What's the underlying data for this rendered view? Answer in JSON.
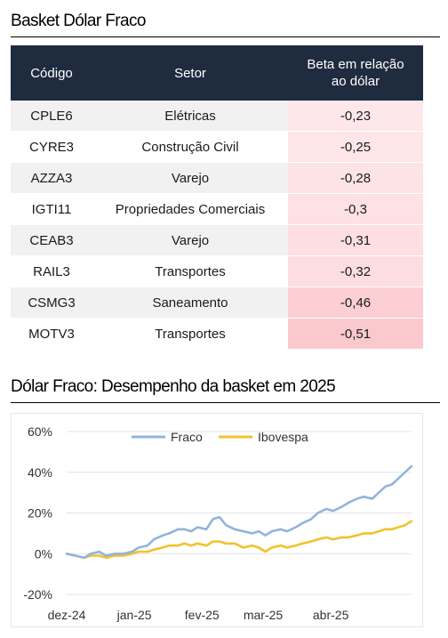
{
  "section1": {
    "title": "Basket Dólar Fraco",
    "table": {
      "headers": [
        "Código",
        "Setor",
        "Beta em relação",
        "ao dólar"
      ],
      "rows": [
        {
          "code": "CPLE6",
          "sector": "Elétricas",
          "beta": "-0,23"
        },
        {
          "code": "CYRE3",
          "sector": "Construção Civil",
          "beta": "-0,25"
        },
        {
          "code": "AZZA3",
          "sector": "Varejo",
          "beta": "-0,28"
        },
        {
          "code": "IGTI11",
          "sector": "Propriedades Comerciais",
          "beta": "-0,3"
        },
        {
          "code": "CEAB3",
          "sector": "Varejo",
          "beta": "-0,31"
        },
        {
          "code": "RAIL3",
          "sector": "Transportes",
          "beta": "-0,32"
        },
        {
          "code": "CSMG3",
          "sector": "Saneamento",
          "beta": "-0,46"
        },
        {
          "code": "MOTV3",
          "sector": "Transportes",
          "beta": "-0,51"
        }
      ],
      "beta_heat_colors": [
        "#fde7ea",
        "#fde5e8",
        "#fde3e6",
        "#fde1e4",
        "#fddfe2",
        "#fcdde0",
        "#fbcfd3",
        "#fac9ce"
      ]
    }
  },
  "section2": {
    "title": "Dólar Fraco: Desempenho da basket em 2025"
  },
  "chart_data": {
    "type": "line",
    "title": "",
    "xlabel": "",
    "ylabel": "",
    "x_range": [
      "2024-12-01",
      "2025-05-08"
    ],
    "ylim": [
      -20,
      60
    ],
    "y_ticks": [
      -20,
      0,
      20,
      40,
      60
    ],
    "y_tick_labels": [
      "-20%",
      "0%",
      "20%",
      "40%",
      "60%"
    ],
    "x_tick_labels": [
      {
        "date": "2024-12-01",
        "label": "dez-24"
      },
      {
        "date": "2025-01-01",
        "label": "jan-25"
      },
      {
        "date": "2025-02-01",
        "label": "fev-25"
      },
      {
        "date": "2025-03-01",
        "label": "mar-25"
      },
      {
        "date": "2025-04-01",
        "label": "abr-25"
      }
    ],
    "grid": "horizontal",
    "legend": "top-center",
    "series": [
      {
        "name": "Fraco",
        "color": "#92b4dc",
        "points": [
          [
            "2024-12-01",
            0
          ],
          [
            "2024-12-05",
            -1
          ],
          [
            "2024-12-09",
            -2
          ],
          [
            "2024-12-12",
            0
          ],
          [
            "2024-12-16",
            1
          ],
          [
            "2024-12-19",
            -1
          ],
          [
            "2024-12-23",
            0
          ],
          [
            "2024-12-27",
            0
          ],
          [
            "2024-12-31",
            1
          ],
          [
            "2025-01-03",
            3
          ],
          [
            "2025-01-07",
            4
          ],
          [
            "2025-01-10",
            7
          ],
          [
            "2025-01-14",
            9
          ],
          [
            "2025-01-17",
            10
          ],
          [
            "2025-01-21",
            12
          ],
          [
            "2025-01-24",
            12
          ],
          [
            "2025-01-27",
            11
          ],
          [
            "2025-01-30",
            13
          ],
          [
            "2025-02-03",
            12
          ],
          [
            "2025-02-06",
            17
          ],
          [
            "2025-02-09",
            18
          ],
          [
            "2025-02-12",
            14
          ],
          [
            "2025-02-16",
            12
          ],
          [
            "2025-02-20",
            11
          ],
          [
            "2025-02-24",
            10
          ],
          [
            "2025-02-27",
            11
          ],
          [
            "2025-03-02",
            9
          ],
          [
            "2025-03-05",
            11
          ],
          [
            "2025-03-09",
            12
          ],
          [
            "2025-03-12",
            11
          ],
          [
            "2025-03-16",
            13
          ],
          [
            "2025-03-19",
            15
          ],
          [
            "2025-03-23",
            17
          ],
          [
            "2025-03-26",
            20
          ],
          [
            "2025-03-30",
            22
          ],
          [
            "2025-04-02",
            21
          ],
          [
            "2025-04-06",
            23
          ],
          [
            "2025-04-09",
            25
          ],
          [
            "2025-04-13",
            27
          ],
          [
            "2025-04-16",
            28
          ],
          [
            "2025-04-20",
            27
          ],
          [
            "2025-04-23",
            30
          ],
          [
            "2025-04-26",
            33
          ],
          [
            "2025-04-29",
            34
          ],
          [
            "2025-05-02",
            37
          ],
          [
            "2025-05-05",
            40
          ],
          [
            "2025-05-08",
            43
          ]
        ]
      },
      {
        "name": "Ibovespa",
        "color": "#f2c12e",
        "points": [
          [
            "2024-12-01",
            0
          ],
          [
            "2024-12-05",
            -1
          ],
          [
            "2024-12-09",
            -2
          ],
          [
            "2024-12-12",
            -1
          ],
          [
            "2024-12-16",
            -1
          ],
          [
            "2024-12-19",
            -2
          ],
          [
            "2024-12-23",
            -1
          ],
          [
            "2024-12-27",
            -1
          ],
          [
            "2024-12-31",
            0
          ],
          [
            "2025-01-03",
            1
          ],
          [
            "2025-01-07",
            1
          ],
          [
            "2025-01-10",
            2
          ],
          [
            "2025-01-14",
            3
          ],
          [
            "2025-01-17",
            4
          ],
          [
            "2025-01-21",
            4
          ],
          [
            "2025-01-24",
            5
          ],
          [
            "2025-01-27",
            4
          ],
          [
            "2025-01-30",
            5
          ],
          [
            "2025-02-03",
            4
          ],
          [
            "2025-02-06",
            6
          ],
          [
            "2025-02-09",
            6
          ],
          [
            "2025-02-12",
            5
          ],
          [
            "2025-02-16",
            5
          ],
          [
            "2025-02-20",
            3
          ],
          [
            "2025-02-24",
            4
          ],
          [
            "2025-02-27",
            3
          ],
          [
            "2025-03-02",
            1
          ],
          [
            "2025-03-05",
            3
          ],
          [
            "2025-03-09",
            4
          ],
          [
            "2025-03-12",
            3
          ],
          [
            "2025-03-16",
            4
          ],
          [
            "2025-03-19",
            5
          ],
          [
            "2025-03-23",
            6
          ],
          [
            "2025-03-26",
            7
          ],
          [
            "2025-03-30",
            8
          ],
          [
            "2025-04-02",
            7
          ],
          [
            "2025-04-06",
            8
          ],
          [
            "2025-04-09",
            8
          ],
          [
            "2025-04-13",
            9
          ],
          [
            "2025-04-16",
            10
          ],
          [
            "2025-04-20",
            10
          ],
          [
            "2025-04-23",
            11
          ],
          [
            "2025-04-26",
            12
          ],
          [
            "2025-04-29",
            12
          ],
          [
            "2025-05-02",
            13
          ],
          [
            "2025-05-05",
            14
          ],
          [
            "2025-05-08",
            16
          ]
        ]
      }
    ]
  }
}
